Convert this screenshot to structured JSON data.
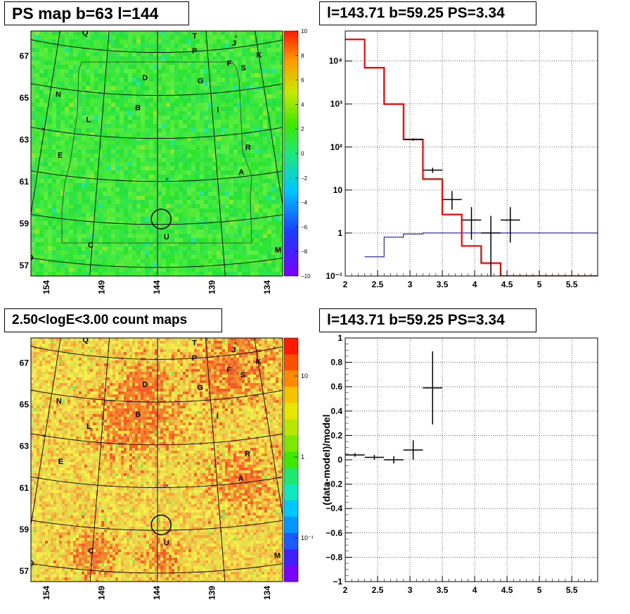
{
  "panels": {
    "ps_map": {
      "title": "PS map b=63 l=144"
    },
    "spectrum": {
      "title": "l=143.71 b=59.25 PS=3.34"
    },
    "count_map": {
      "title": "2.50<logE<3.00 count maps"
    },
    "residual": {
      "title": "l=143.71 b=59.25 PS=3.34"
    }
  },
  "maps": {
    "lat_labels": [
      "67",
      "65",
      "63",
      "61",
      "59",
      "57"
    ],
    "lon_labels": [
      "154",
      "149",
      "144",
      "139",
      "134"
    ],
    "sources": [
      {
        "name": "Q",
        "lon": 151.4,
        "lat": 67.6
      },
      {
        "name": "T",
        "lon": 140.2,
        "lat": 67.6
      },
      {
        "name": "H",
        "lon": 136.2,
        "lat": 67.8
      },
      {
        "name": "P",
        "lon": 140.3,
        "lat": 66.9
      },
      {
        "name": "J",
        "lon": 136.3,
        "lat": 67.1
      },
      {
        "name": "K",
        "lon": 134.0,
        "lat": 66.4
      },
      {
        "name": "F",
        "lon": 137.0,
        "lat": 66.2
      },
      {
        "name": "S",
        "lon": 135.7,
        "lat": 65.9
      },
      {
        "name": "D",
        "lon": 145.2,
        "lat": 65.7
      },
      {
        "name": "G",
        "lon": 139.9,
        "lat": 65.5
      },
      {
        "name": "N",
        "lon": 153.2,
        "lat": 64.6
      },
      {
        "name": "B",
        "lon": 145.8,
        "lat": 64.3
      },
      {
        "name": "I",
        "lon": 138.5,
        "lat": 64.1
      },
      {
        "name": "L",
        "lon": 150.2,
        "lat": 63.6
      },
      {
        "name": "R",
        "lon": 136.2,
        "lat": 62.2
      },
      {
        "name": "E",
        "lon": 152.3,
        "lat": 61.8
      },
      {
        "name": "A",
        "lon": 137.0,
        "lat": 61.1
      },
      {
        "name": "U",
        "lon": 143.3,
        "lat": 58.3
      },
      {
        "name": "C",
        "lon": 149.1,
        "lat": 57.8
      },
      {
        "name": "M",
        "lon": 134.9,
        "lat": 57.3
      },
      {
        "name": "O",
        "lon": 153.5,
        "lat": 56.9
      }
    ],
    "markers": [
      {
        "lon": 154.1,
        "lat": 63.0
      },
      {
        "lon": 143.2,
        "lat": 61.1
      },
      {
        "lon": 136.0,
        "lat": 67.5
      }
    ],
    "roi_circle": {
      "lon": 143.71,
      "lat": 59.25
    },
    "ps_scale": {
      "range": [
        -10,
        10
      ],
      "ticks": [
        "10",
        "8",
        "6",
        "4",
        "2",
        "0",
        "−2",
        "−4",
        "−6",
        "−8",
        "−10"
      ]
    },
    "count_scale": {
      "ticks": [
        "10",
        "1",
        "10⁻¹"
      ]
    }
  },
  "chart_data": [
    {
      "type": "line",
      "panel": "spectrum",
      "yscale": "log",
      "xlim": [
        2,
        5.9
      ],
      "ylim": [
        0.1,
        50000
      ],
      "xticks": [
        "2",
        "2.5",
        "3",
        "3.5",
        "4",
        "4.5",
        "5",
        "5.5"
      ],
      "yticks": [
        "10⁻¹",
        "1",
        "10",
        "10²",
        "10³",
        "10⁴"
      ],
      "model_red": {
        "edges": [
          2.0,
          2.3,
          2.6,
          2.9,
          3.2,
          3.5,
          3.8,
          4.1,
          4.4,
          5.9
        ],
        "values": [
          32000,
          7000,
          1000,
          150,
          18,
          2.7,
          0.5,
          0.2,
          0.1
        ]
      },
      "model_blue": {
        "edges": [
          2.3,
          2.6,
          2.9,
          3.2,
          3.5,
          5.9
        ],
        "values": [
          0.28,
          0.8,
          0.95,
          1.0,
          1.0
        ]
      },
      "data_points": [
        {
          "x": 3.05,
          "y": 150,
          "xerr": 0.15,
          "yerr_lo": 10,
          "yerr_hi": 10
        },
        {
          "x": 3.35,
          "y": 29,
          "xerr": 0.15,
          "yerr_lo": 4,
          "yerr_hi": 4
        },
        {
          "x": 3.65,
          "y": 6,
          "xerr": 0.15,
          "yerr_lo": 2.5,
          "yerr_hi": 3.5
        },
        {
          "x": 3.95,
          "y": 2,
          "xerr": 0.15,
          "yerr_lo": 1.3,
          "yerr_hi": 2
        },
        {
          "x": 4.25,
          "y": 1,
          "xerr": 0.15,
          "yerr_lo": 0.9,
          "yerr_hi": 1.5
        },
        {
          "x": 4.55,
          "y": 2,
          "xerr": 0.15,
          "yerr_lo": 1.4,
          "yerr_hi": 2
        }
      ]
    },
    {
      "type": "scatter",
      "panel": "residual",
      "xlim": [
        2,
        5.9
      ],
      "ylim": [
        -1,
        1
      ],
      "ylabel": "(data-model)/model",
      "xticks": [
        "2",
        "2.5",
        "3",
        "3.5",
        "4",
        "4.5",
        "5",
        "5.5"
      ],
      "yticks": [
        "−1",
        "−0.8",
        "−0.6",
        "−0.4",
        "−0.2",
        "0",
        "0.2",
        "0.4",
        "0.6",
        "0.8",
        "1"
      ],
      "points": [
        {
          "x": 2.15,
          "y": 0.04,
          "xerr": 0.15,
          "yerr": 0.015
        },
        {
          "x": 2.45,
          "y": 0.02,
          "xerr": 0.15,
          "yerr": 0.02
        },
        {
          "x": 2.75,
          "y": 0.0,
          "xerr": 0.15,
          "yerr": 0.03
        },
        {
          "x": 3.05,
          "y": 0.08,
          "xerr": 0.15,
          "yerr": 0.08
        },
        {
          "x": 3.35,
          "y": 0.59,
          "xerr": 0.15,
          "yerr": 0.3
        }
      ]
    }
  ]
}
